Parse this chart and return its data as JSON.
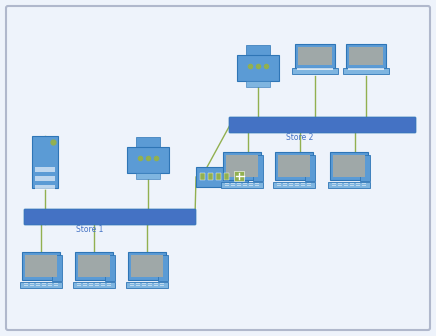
{
  "bg_color": "#EEF3FB",
  "border_color": "#B0B8CC",
  "device_blue": "#5B9BD5",
  "device_blue_light": "#7FB5E0",
  "device_blue_dark": "#2E75B6",
  "bar_blue": "#4472C4",
  "line_color": "#92B050",
  "screen_gray": "#9FA8A8",
  "label_color": "#4472C4",
  "green_dot": "#92B050",
  "switch_green": "#92B050",
  "store1_label": "Store 1",
  "store2_label": "Store 2"
}
